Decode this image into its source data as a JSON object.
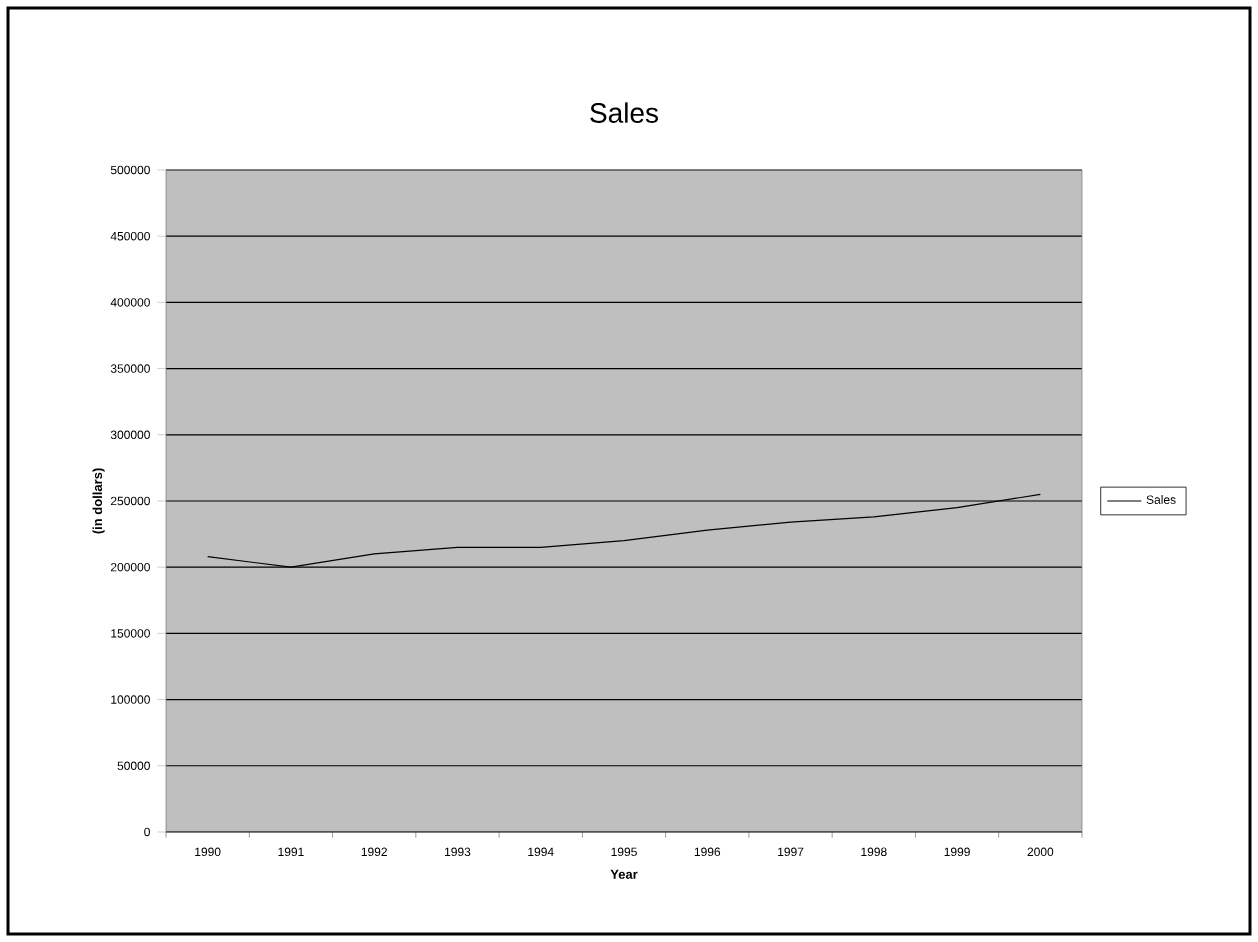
{
  "chart_data": {
    "type": "line",
    "title": "Sales",
    "xlabel": "Year",
    "ylabel": "(in dollars)",
    "categories": [
      "1990",
      "1991",
      "1992",
      "1993",
      "1994",
      "1995",
      "1996",
      "1997",
      "1998",
      "1999",
      "2000"
    ],
    "series": [
      {
        "name": "Sales",
        "color": "#000000",
        "values": [
          208000,
          200000,
          210000,
          215000,
          215000,
          220000,
          228000,
          234000,
          238000,
          245000,
          255000
        ]
      }
    ],
    "ylim": [
      0,
      500000
    ],
    "yticks": [
      0,
      50000,
      100000,
      150000,
      200000,
      250000,
      300000,
      350000,
      400000,
      450000,
      500000
    ],
    "grid": "y",
    "legend": "right",
    "marker": "none",
    "line_style": "solid"
  }
}
